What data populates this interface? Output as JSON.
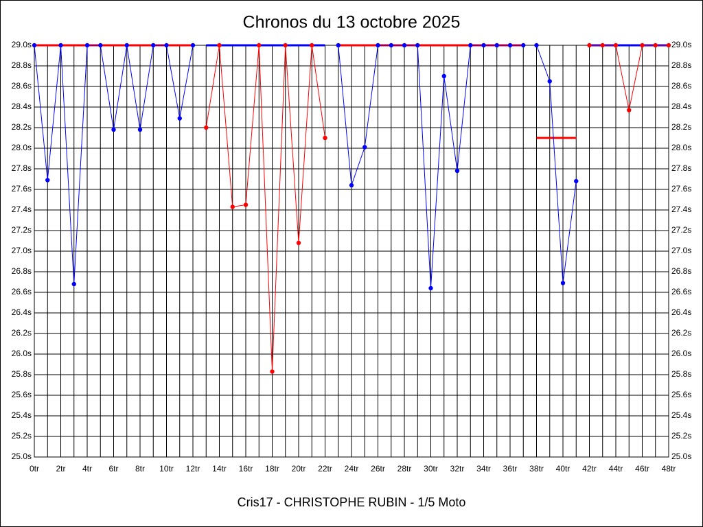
{
  "chart_data": {
    "type": "line",
    "title": "Chronos du 13 octobre 2025",
    "subtitle": "Cris17 - CHRISTOPHE RUBIN - 1/5 Moto",
    "xlim": [
      0,
      48
    ],
    "ylim": [
      25,
      29
    ],
    "grid": true,
    "xticks": [
      {
        "value": 0,
        "label": "0tr"
      },
      {
        "value": 2,
        "label": "2tr"
      },
      {
        "value": 4,
        "label": "4tr"
      },
      {
        "value": 6,
        "label": "6tr"
      },
      {
        "value": 8,
        "label": "8tr"
      },
      {
        "value": 10,
        "label": "10tr"
      },
      {
        "value": 12,
        "label": "12tr"
      },
      {
        "value": 14,
        "label": "14tr"
      },
      {
        "value": 16,
        "label": "16tr"
      },
      {
        "value": 18,
        "label": "18tr"
      },
      {
        "value": 20,
        "label": "20tr"
      },
      {
        "value": 22,
        "label": "22tr"
      },
      {
        "value": 24,
        "label": "24tr"
      },
      {
        "value": 26,
        "label": "26tr"
      },
      {
        "value": 28,
        "label": "28tr"
      },
      {
        "value": 30,
        "label": "30tr"
      },
      {
        "value": 32,
        "label": "32tr"
      },
      {
        "value": 34,
        "label": "34tr"
      },
      {
        "value": 36,
        "label": "36tr"
      },
      {
        "value": 38,
        "label": "38tr"
      },
      {
        "value": 40,
        "label": "40tr"
      },
      {
        "value": 42,
        "label": "42tr"
      },
      {
        "value": 44,
        "label": "44tr"
      },
      {
        "value": 46,
        "label": "46tr"
      },
      {
        "value": 48,
        "label": "48tr"
      }
    ],
    "x_minor_ticks": [
      1,
      3,
      5,
      7,
      9,
      11,
      13,
      15,
      17,
      19,
      21,
      23,
      25,
      27,
      29,
      31,
      33,
      35,
      37,
      39,
      41,
      43,
      45,
      47
    ],
    "yticks": [
      {
        "value": 25,
        "label": "25.0s"
      },
      {
        "value": 25.2,
        "label": "25.2s"
      },
      {
        "value": 25.4,
        "label": "25.4s"
      },
      {
        "value": 25.6,
        "label": "25.6s"
      },
      {
        "value": 25.8,
        "label": "25.8s"
      },
      {
        "value": 26,
        "label": "26.0s"
      },
      {
        "value": 26.2,
        "label": "26.2s"
      },
      {
        "value": 26.4,
        "label": "26.4s"
      },
      {
        "value": 26.6,
        "label": "26.6s"
      },
      {
        "value": 26.8,
        "label": "26.8s"
      },
      {
        "value": 27,
        "label": "27.0s"
      },
      {
        "value": 27.2,
        "label": "27.2s"
      },
      {
        "value": 27.4,
        "label": "27.4s"
      },
      {
        "value": 27.6,
        "label": "27.6s"
      },
      {
        "value": 27.8,
        "label": "27.8s"
      },
      {
        "value": 28,
        "label": "28.0s"
      },
      {
        "value": 28.2,
        "label": "28.2s"
      },
      {
        "value": 28.4,
        "label": "28.4s"
      },
      {
        "value": 28.6,
        "label": "28.6s"
      },
      {
        "value": 28.8,
        "label": "28.8s"
      },
      {
        "value": 29,
        "label": "29.0s"
      }
    ],
    "series": [
      {
        "color": "#ff0000",
        "marker": false,
        "line_width": 3,
        "x": [
          0,
          12
        ],
        "values": [
          29,
          29
        ]
      },
      {
        "color": "#0000ff",
        "marker": false,
        "line_width": 3,
        "x": [
          13,
          22
        ],
        "values": [
          29,
          29
        ]
      },
      {
        "color": "#ff0000",
        "marker": false,
        "line_width": 3,
        "x": [
          23,
          37
        ],
        "values": [
          29,
          29
        ]
      },
      {
        "color": "#ff0000",
        "marker": false,
        "line_width": 3,
        "x": [
          38,
          41
        ],
        "values": [
          28.1,
          28.1
        ]
      },
      {
        "color": "#0000ff",
        "marker": false,
        "line_width": 3,
        "x": [
          42,
          48
        ],
        "values": [
          29,
          29
        ]
      },
      {
        "color": "#0000ff",
        "marker": true,
        "line_width": 1,
        "x": [
          0,
          1,
          2,
          3,
          4,
          5,
          6,
          7,
          8,
          9,
          10,
          11,
          12
        ],
        "values": [
          29,
          27.69,
          29,
          26.68,
          29,
          29,
          28.18,
          29,
          28.18,
          29,
          29,
          28.29,
          29
        ]
      },
      {
        "color": "#ff0000",
        "marker": true,
        "line_width": 1,
        "x": [
          13,
          14,
          15,
          16,
          17,
          18,
          19,
          20,
          21,
          22
        ],
        "values": [
          28.2,
          29,
          27.43,
          27.45,
          29,
          25.83,
          29,
          27.08,
          29,
          28.1
        ]
      },
      {
        "color": "#0000ff",
        "marker": true,
        "line_width": 1,
        "x": [
          23,
          24,
          25,
          26,
          27,
          28,
          29,
          30,
          31,
          32,
          33,
          34,
          35,
          36,
          37
        ],
        "values": [
          29,
          27.64,
          28.01,
          29,
          29,
          29,
          29,
          26.64,
          28.7,
          27.78,
          29,
          29,
          29,
          29,
          29
        ]
      },
      {
        "color": "#0000ff",
        "marker": true,
        "line_width": 1,
        "x": [
          38,
          39,
          40,
          41
        ],
        "values": [
          29,
          28.65,
          26.69,
          27.68
        ]
      },
      {
        "color": "#ff0000",
        "marker": true,
        "line_width": 1,
        "x": [
          42,
          43,
          44,
          45,
          46,
          47,
          48
        ],
        "values": [
          29,
          29,
          29,
          28.37,
          29,
          29,
          29
        ]
      }
    ]
  }
}
